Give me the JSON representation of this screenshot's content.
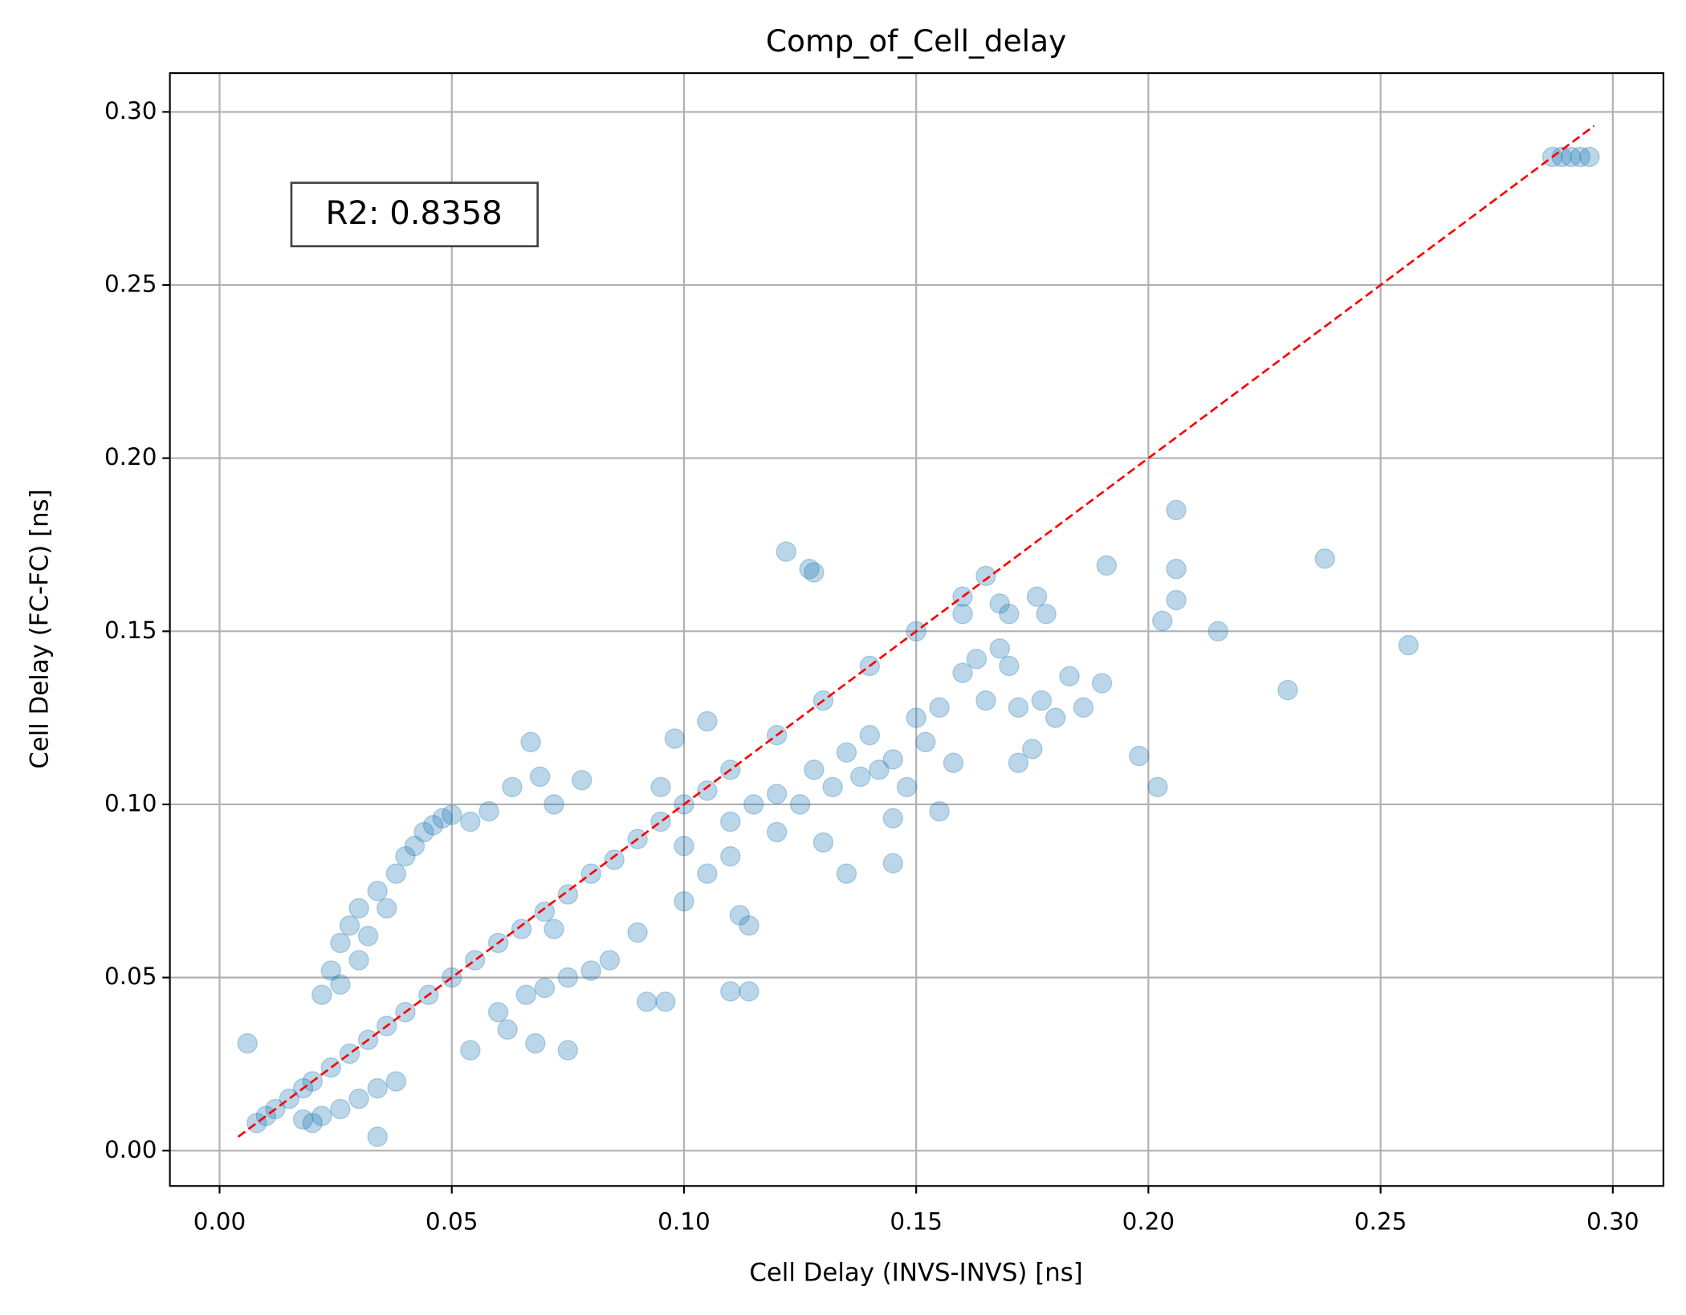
{
  "chart_data": {
    "type": "scatter",
    "title": "Comp_of_Cell_delay",
    "x_label": "Cell Delay (INVS-INVS) [ns]",
    "y_label": "Cell Delay (FC-FC) [ns]",
    "annotation": "R2: 0.8358",
    "color": "#1f77b4",
    "point_alpha": 0.3,
    "grid": true,
    "xlim": [
      -0.0107,
      0.3109
    ],
    "ylim": [
      -0.0102,
      0.3112
    ],
    "xticks": [
      {
        "value": 0,
        "label": "0.00"
      },
      {
        "value": 0.05,
        "label": "0.05"
      },
      {
        "value": 0.1,
        "label": "0.10"
      },
      {
        "value": 0.15,
        "label": "0.15"
      },
      {
        "value": 0.2,
        "label": "0.20"
      },
      {
        "value": 0.25,
        "label": "0.25"
      },
      {
        "value": 0.3,
        "label": "0.30"
      }
    ],
    "yticks": [
      {
        "value": 0,
        "label": "0.00"
      },
      {
        "value": 0.05,
        "label": "0.05"
      },
      {
        "value": 0.1,
        "label": "0.10"
      },
      {
        "value": 0.15,
        "label": "0.15"
      },
      {
        "value": 0.2,
        "label": "0.20"
      },
      {
        "value": 0.25,
        "label": "0.25"
      },
      {
        "value": 0.3,
        "label": "0.30"
      }
    ],
    "reference_line": {
      "x": [
        0.004,
        0.296
      ],
      "y": [
        0.004,
        0.296
      ],
      "color": "#ff0000"
    },
    "x": [
      0.008,
      0.01,
      0.012,
      0.015,
      0.018,
      0.02,
      0.024,
      0.028,
      0.032,
      0.036,
      0.04,
      0.045,
      0.05,
      0.055,
      0.06,
      0.065,
      0.07,
      0.075,
      0.08,
      0.085,
      0.09,
      0.095,
      0.1,
      0.105,
      0.11,
      0.12,
      0.13,
      0.14,
      0.15,
      0.16,
      0.165,
      0.018,
      0.022,
      0.026,
      0.03,
      0.034,
      0.038,
      0.02,
      0.022,
      0.024,
      0.026,
      0.028,
      0.03,
      0.032,
      0.034,
      0.036,
      0.038,
      0.04,
      0.042,
      0.044,
      0.046,
      0.048,
      0.05,
      0.054,
      0.058,
      0.063,
      0.067,
      0.069,
      0.072,
      0.078,
      0.026,
      0.03,
      0.066,
      0.07,
      0.075,
      0.08,
      0.06,
      0.062,
      0.054,
      0.075,
      0.068,
      0.092,
      0.096,
      0.11,
      0.114,
      0.1,
      0.112,
      0.114,
      0.09,
      0.084,
      0.072,
      0.095,
      0.098,
      0.105,
      0.11,
      0.115,
      0.12,
      0.125,
      0.128,
      0.13,
      0.132,
      0.135,
      0.138,
      0.14,
      0.142,
      0.145,
      0.148,
      0.15,
      0.152,
      0.155,
      0.158,
      0.16,
      0.163,
      0.165,
      0.168,
      0.17,
      0.172,
      0.175,
      0.177,
      0.18,
      0.183,
      0.186,
      0.19,
      0.12,
      0.11,
      0.1,
      0.105,
      0.145,
      0.155,
      0.172,
      0.176,
      0.168,
      0.17,
      0.178,
      0.16,
      0.145,
      0.135,
      0.206,
      0.238,
      0.206,
      0.206,
      0.127,
      0.128,
      0.256,
      0.23,
      0.215,
      0.202,
      0.006,
      0.034,
      0.122,
      0.203,
      0.198,
      0.191,
      0.287,
      0.289,
      0.291,
      0.293,
      0.295
    ],
    "values": [
      0.008,
      0.01,
      0.012,
      0.015,
      0.018,
      0.02,
      0.024,
      0.028,
      0.032,
      0.036,
      0.04,
      0.045,
      0.05,
      0.055,
      0.06,
      0.064,
      0.069,
      0.074,
      0.08,
      0.084,
      0.09,
      0.095,
      0.1,
      0.104,
      0.11,
      0.12,
      0.13,
      0.14,
      0.15,
      0.16,
      0.166,
      0.009,
      0.01,
      0.012,
      0.015,
      0.018,
      0.02,
      0.008,
      0.045,
      0.052,
      0.06,
      0.065,
      0.07,
      0.062,
      0.075,
      0.07,
      0.08,
      0.085,
      0.088,
      0.092,
      0.094,
      0.096,
      0.097,
      0.095,
      0.098,
      0.105,
      0.118,
      0.108,
      0.1,
      0.107,
      0.048,
      0.055,
      0.045,
      0.047,
      0.05,
      0.052,
      0.04,
      0.035,
      0.029,
      0.029,
      0.031,
      0.043,
      0.043,
      0.046,
      0.046,
      0.072,
      0.068,
      0.065,
      0.063,
      0.055,
      0.064,
      0.105,
      0.119,
      0.124,
      0.095,
      0.1,
      0.103,
      0.1,
      0.11,
      0.089,
      0.105,
      0.115,
      0.108,
      0.12,
      0.11,
      0.113,
      0.105,
      0.125,
      0.118,
      0.128,
      0.112,
      0.138,
      0.142,
      0.13,
      0.145,
      0.14,
      0.128,
      0.116,
      0.13,
      0.125,
      0.137,
      0.128,
      0.135,
      0.092,
      0.085,
      0.088,
      0.08,
      0.096,
      0.098,
      0.112,
      0.16,
      0.158,
      0.155,
      0.155,
      0.155,
      0.083,
      0.08,
      0.185,
      0.171,
      0.168,
      0.159,
      0.168,
      0.167,
      0.146,
      0.133,
      0.15,
      0.105,
      0.031,
      0.004,
      0.173,
      0.153,
      0.114,
      0.169,
      0.287,
      0.287,
      0.287,
      0.287,
      0.287
    ]
  }
}
